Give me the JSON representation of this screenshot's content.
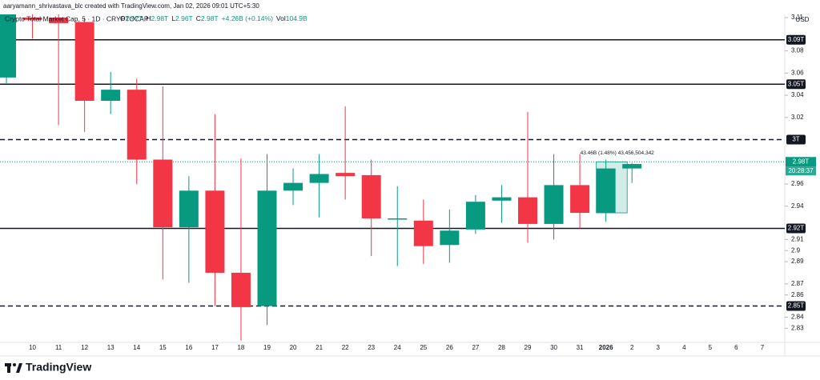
{
  "header": {
    "credit": "aaryamann_shrivastava_blc created with TradingView.com, Jan 02, 2026 09:01 UTC+5:30"
  },
  "chart_data": {
    "type": "candlestick",
    "symbol": "Crypto Total Market Cap, 5 · 1D · CRYPTOCAP",
    "legend_items": [
      {
        "key": "O",
        "value": "2.97T"
      },
      {
        "key": "H",
        "value": "2.98T"
      },
      {
        "key": "L",
        "value": "2.96T"
      },
      {
        "key": "C",
        "value": "2.98T"
      },
      {
        "value": "+4.26B (+0.14%)"
      },
      {
        "key": "Vol",
        "value": "104.9B"
      }
    ],
    "currency": "USD",
    "up_color": "#089981",
    "down_color": "#f23645",
    "categories": [
      null,
      "10",
      "11",
      "12",
      "13",
      "14",
      "15",
      "16",
      "17",
      "18",
      "19",
      "20",
      "21",
      "22",
      "23",
      "24",
      "25",
      "26",
      "27",
      "28",
      "29",
      "30",
      "31",
      "2026",
      "2",
      "3",
      "4",
      "5",
      "6",
      "7"
    ],
    "open": [
      3.056,
      3.11,
      3.11,
      3.106,
      3.035,
      3.045,
      2.982,
      2.921,
      2.954,
      2.88,
      2.85,
      2.954,
      2.961,
      2.97,
      2.968,
      2.929,
      2.927,
      2.905,
      2.919,
      2.945,
      2.948,
      2.924,
      2.959,
      2.934,
      2.974,
      null,
      null,
      null,
      null,
      null
    ],
    "high": [
      3.125,
      3.115,
      3.115,
      3.11,
      3.061,
      3.055,
      3.048,
      2.967,
      3.023,
      2.983,
      2.987,
      2.974,
      2.987,
      3.03,
      2.982,
      2.958,
      2.946,
      2.937,
      2.95,
      2.959,
      3.025,
      2.987,
      2.987,
      2.982,
      2.979,
      null,
      null,
      null,
      null,
      null
    ],
    "low": [
      3.05,
      3.091,
      3.013,
      3.007,
      3.023,
      2.96,
      2.874,
      2.871,
      2.85,
      2.819,
      2.833,
      2.941,
      2.93,
      2.946,
      2.895,
      2.886,
      2.888,
      2.889,
      2.915,
      2.925,
      2.907,
      2.91,
      2.92,
      2.926,
      2.961,
      null,
      null,
      null,
      null,
      null
    ],
    "close": [
      3.12,
      3.108,
      3.105,
      3.035,
      3.045,
      2.982,
      2.921,
      2.954,
      2.88,
      2.849,
      2.954,
      2.961,
      2.969,
      2.967,
      2.929,
      2.929,
      2.904,
      2.918,
      2.944,
      2.948,
      2.924,
      2.959,
      2.934,
      2.974,
      2.978,
      null,
      null,
      null,
      null,
      null
    ],
    "ylim": [
      2.81,
      3.11
    ],
    "yticks": [
      3.11,
      3.08,
      3.06,
      3.04,
      3.02,
      2.96,
      2.94,
      2.91,
      2.9,
      2.89,
      2.87,
      2.86,
      2.84,
      2.83
    ],
    "levels": [
      {
        "value": 3.09,
        "label": "3.09T",
        "style": "solid"
      },
      {
        "value": 3.05,
        "label": "3.05T",
        "style": "solid"
      },
      {
        "value": 3.0,
        "label": "3T",
        "style": "dashed"
      },
      {
        "value": 2.92,
        "label": "2.92T",
        "style": "solid"
      },
      {
        "value": 2.85,
        "label": "2.85T",
        "style": "dashed"
      }
    ],
    "current_price": {
      "value": 2.98,
      "label": "2.98T",
      "countdown": "20:28:37"
    },
    "annotation": "43.46B (1.48%) 43,456,504,342"
  },
  "footer": {
    "brand": "TradingView"
  }
}
